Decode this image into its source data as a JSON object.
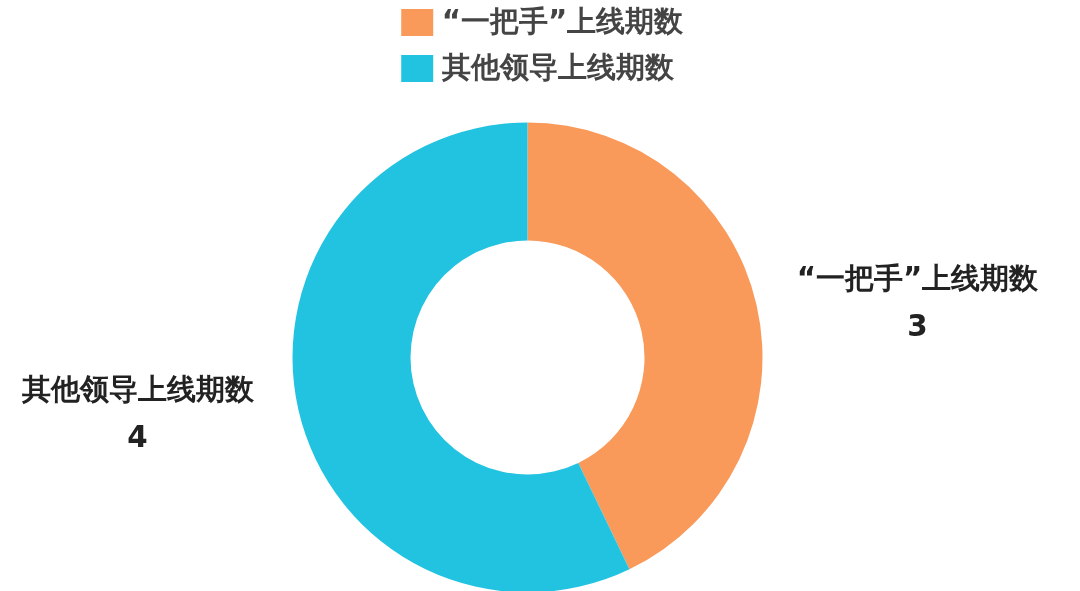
{
  "chart_data": {
    "type": "donut",
    "categories": [
      "“一把手”上线期数",
      "其他领导上线期数"
    ],
    "values": [
      3,
      4
    ],
    "colors": [
      "#f99a5b",
      "#22c3e0"
    ],
    "legend": "top",
    "data_labels": true
  }
}
